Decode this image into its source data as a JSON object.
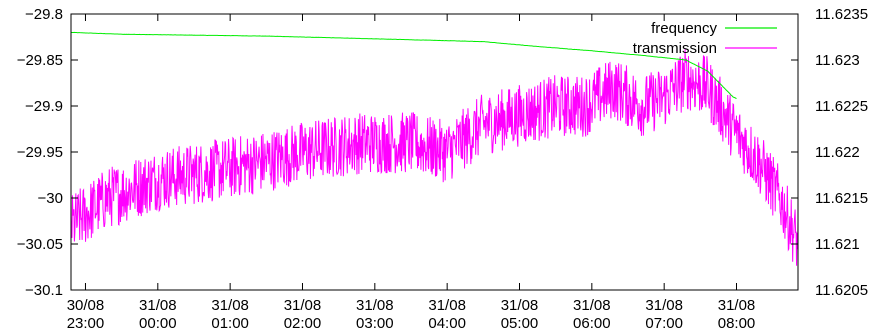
{
  "chart_data": {
    "type": "line",
    "title": "",
    "xlabel": "",
    "ylabel": "",
    "y2label": "",
    "grid": false,
    "legend_position": "top-right",
    "colors": {
      "frequency": "#00ee00",
      "transmission": "#ff00ff",
      "axes": "#000000"
    },
    "x_ticks": [
      {
        "hour": 0,
        "date": "30/08",
        "time": "23:00"
      },
      {
        "hour": 1,
        "date": "31/08",
        "time": "00:00"
      },
      {
        "hour": 2,
        "date": "31/08",
        "time": "01:00"
      },
      {
        "hour": 3,
        "date": "31/08",
        "time": "02:00"
      },
      {
        "hour": 4,
        "date": "31/08",
        "time": "03:00"
      },
      {
        "hour": 5,
        "date": "31/08",
        "time": "04:00"
      },
      {
        "hour": 6,
        "date": "31/08",
        "time": "05:00"
      },
      {
        "hour": 7,
        "date": "31/08",
        "time": "06:00"
      },
      {
        "hour": 8,
        "date": "31/08",
        "time": "07:00"
      },
      {
        "hour": 9,
        "date": "31/08",
        "time": "08:00"
      }
    ],
    "xlim_hours": [
      -0.2,
      9.85
    ],
    "y_left": {
      "lim": [
        -30.1,
        -29.8
      ],
      "ticks": [
        "-29.8",
        "-29.85",
        "-29.9",
        "-29.95",
        "-30",
        "-30.05",
        "-30.1"
      ]
    },
    "y_right": {
      "lim": [
        11.6205,
        11.6235
      ],
      "ticks": [
        "11.6235",
        "11.623",
        "11.6225",
        "11.622",
        "11.6215",
        "11.621",
        "11.6205"
      ]
    },
    "series": [
      {
        "name": "frequency",
        "axis": "right",
        "noise": 1.2e-06,
        "points": [
          [
            -0.2,
            11.6233
          ],
          [
            0.5,
            11.62328
          ],
          [
            1.5,
            11.62327
          ],
          [
            2.5,
            11.62326
          ],
          [
            3.5,
            11.62324
          ],
          [
            4.5,
            11.62322
          ],
          [
            5.5,
            11.6232
          ],
          [
            6.2,
            11.62315
          ],
          [
            7.0,
            11.6231
          ],
          [
            7.7,
            11.62305
          ],
          [
            8.3,
            11.623
          ],
          [
            8.6,
            11.62288
          ],
          [
            8.8,
            11.62272
          ],
          [
            8.95,
            11.6226
          ],
          [
            9.0,
            11.62258
          ]
        ]
      },
      {
        "name": "transmission",
        "axis": "left",
        "noise": 0.034,
        "points": [
          [
            -0.2,
            -30.03
          ],
          [
            0.3,
            -30.0
          ],
          [
            1.0,
            -29.98
          ],
          [
            1.8,
            -29.97
          ],
          [
            2.5,
            -29.96
          ],
          [
            3.0,
            -29.95
          ],
          [
            3.8,
            -29.94
          ],
          [
            4.5,
            -29.94
          ],
          [
            5.0,
            -29.95
          ],
          [
            5.5,
            -29.92
          ],
          [
            6.0,
            -29.91
          ],
          [
            6.5,
            -29.9
          ],
          [
            6.9,
            -29.9
          ],
          [
            7.3,
            -29.88
          ],
          [
            7.7,
            -29.9
          ],
          [
            8.0,
            -29.89
          ],
          [
            8.3,
            -29.87
          ],
          [
            8.6,
            -29.88
          ],
          [
            9.0,
            -29.93
          ],
          [
            9.3,
            -29.96
          ],
          [
            9.6,
            -30.0
          ],
          [
            9.85,
            -30.05
          ]
        ]
      }
    ]
  }
}
